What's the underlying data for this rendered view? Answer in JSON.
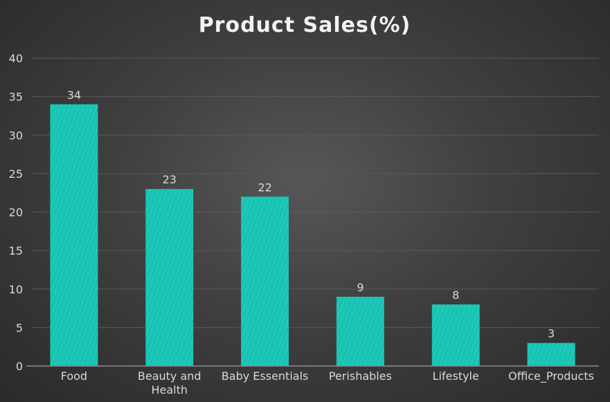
{
  "chart_data": {
    "type": "bar",
    "title": "Product Sales(%)",
    "xlabel": "",
    "ylabel": "",
    "categories": [
      "Food",
      "Beauty and Health",
      "Baby Essentials",
      "Perishables",
      "Lifestyle",
      "Office_Products"
    ],
    "category_lines": [
      [
        "Food"
      ],
      [
        "Beauty and",
        "Health"
      ],
      [
        "Baby Essentials"
      ],
      [
        "Perishables"
      ],
      [
        "Lifestyle"
      ],
      [
        "Office_Products"
      ]
    ],
    "values": [
      34,
      23,
      22,
      9,
      8,
      3
    ],
    "data_labels": [
      "34",
      "23",
      "22",
      "9",
      "8",
      "3"
    ],
    "ylim": [
      0,
      40
    ],
    "y_ticks": [
      0,
      5,
      10,
      15,
      20,
      25,
      30,
      35,
      40
    ],
    "grid": true,
    "legend": "none",
    "bar_color": "#1cc9b8",
    "background_color": "#3d3d3d"
  }
}
